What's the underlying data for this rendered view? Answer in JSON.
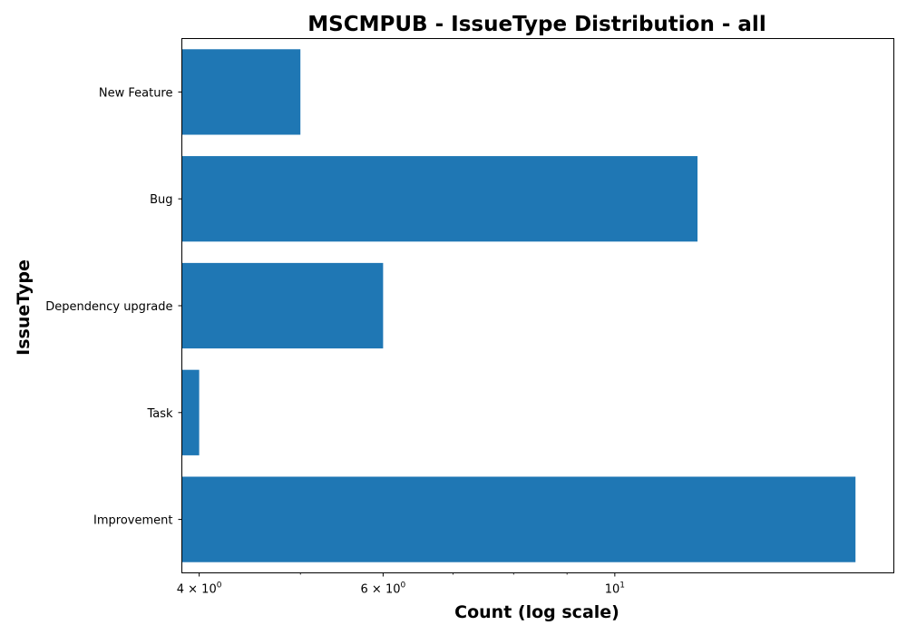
{
  "chart_data": {
    "type": "bar",
    "orientation": "horizontal",
    "title": "MSCMPUB - IssueType Distribution - all",
    "xlabel": "Count (log scale)",
    "ylabel": "IssueType",
    "x_scale": "log",
    "xlim": [
      3.85,
      18.5
    ],
    "categories": [
      "Improvement",
      "Task",
      "Dependency upgrade",
      "Bug",
      "New Feature"
    ],
    "values": [
      17,
      4,
      6,
      12,
      5
    ],
    "bar_color": "#1f77b4",
    "x_ticks": [
      {
        "value": 4,
        "base": "4 × 10",
        "exp": "0"
      },
      {
        "value": 6,
        "base": "6 × 10",
        "exp": "0"
      },
      {
        "value": 10,
        "base": "10",
        "exp": "1"
      }
    ],
    "x_minor_ticks": [
      5,
      7,
      8,
      9
    ],
    "grid": false,
    "legend": "none"
  }
}
